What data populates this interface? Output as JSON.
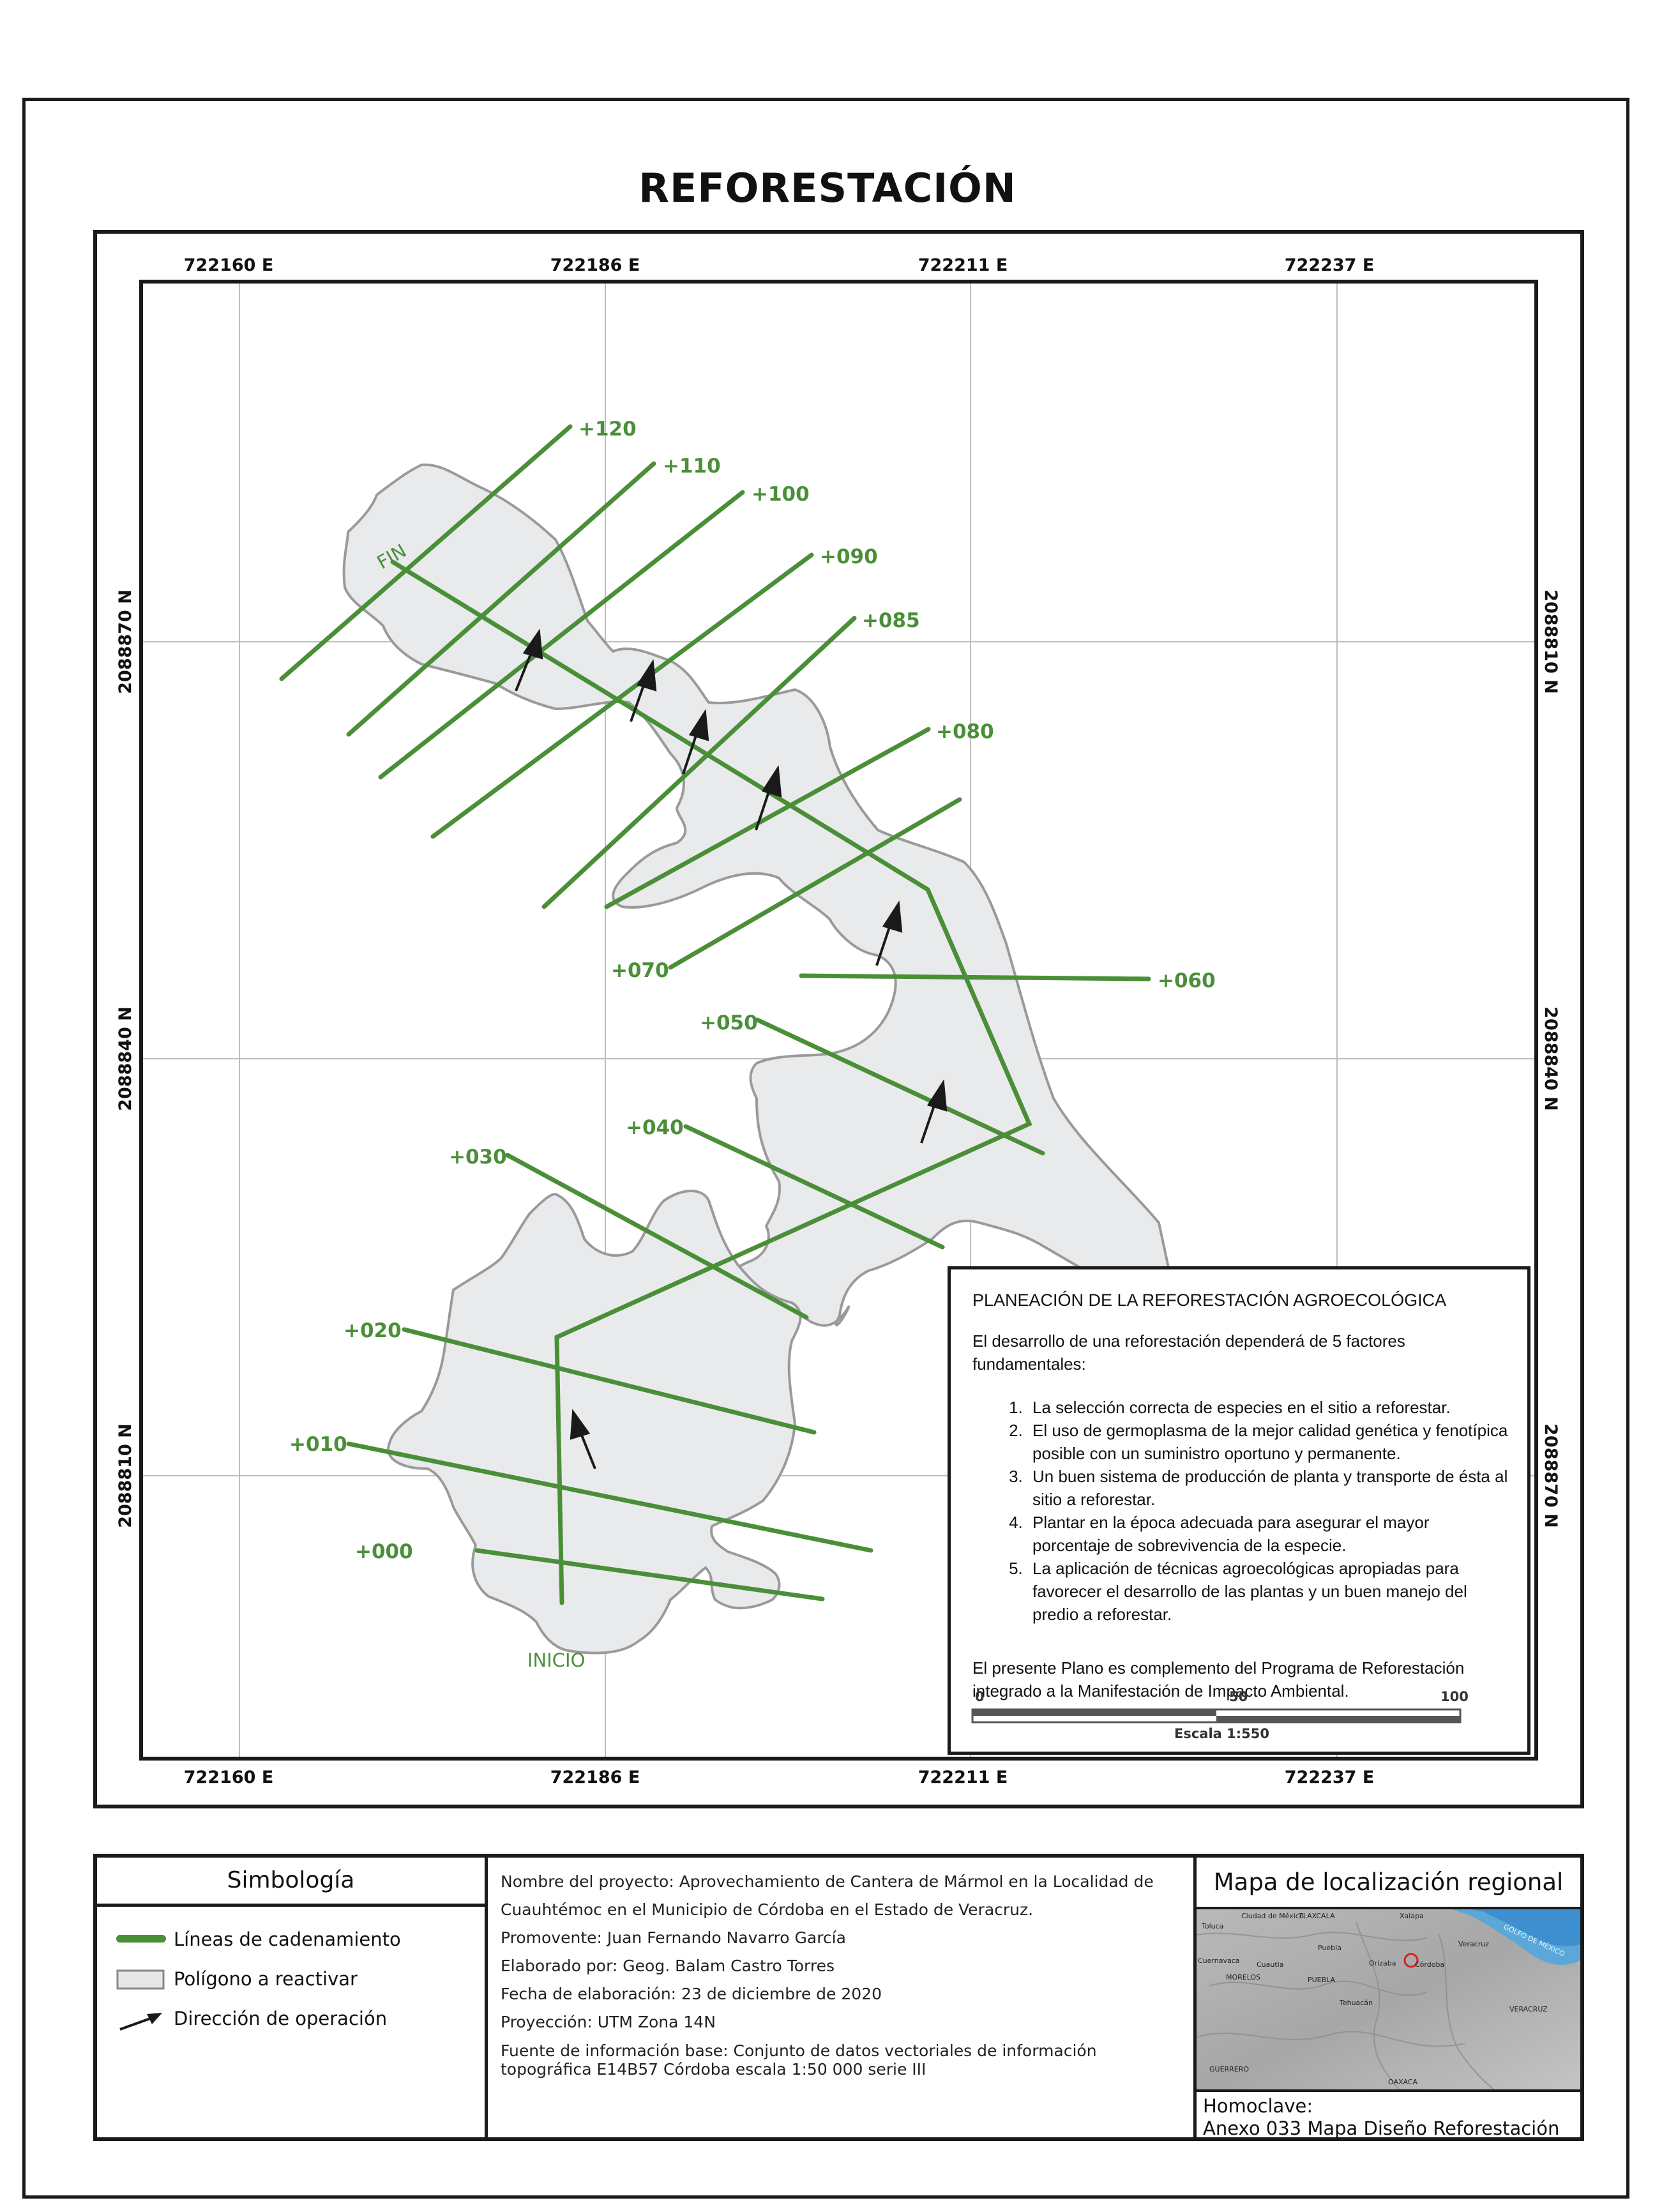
{
  "title": "REFORESTACIÓN",
  "grid": {
    "eastings": [
      "722160 E",
      "722186 E",
      "722211 E",
      "722237 E"
    ],
    "northings_left": [
      "2088870 N",
      "2088840 N",
      "2088810 N"
    ],
    "northings_right": [
      "2088810 N",
      "2088840 N",
      "2088870 N"
    ]
  },
  "chainage_labels": [
    "+120",
    "+110",
    "+100",
    "+090",
    "+085",
    "+080",
    "+070",
    "+060",
    "+050",
    "+040",
    "+030",
    "+020",
    "+010",
    "+000"
  ],
  "start_label": "INICIO",
  "end_label": "FIN",
  "notes": {
    "title": "PLANEACIÓN DE LA REFORESTACIÓN AGROECOLÓGICA",
    "intro": "El desarrollo de una reforestación dependerá de 5 factores fundamentales:",
    "items": [
      "La selección correcta de especies en el sitio a reforestar.",
      "El uso de germoplasma de la mejor calidad genética y fenotípica posible con un suministro oportuno y permanente.",
      "Un buen sistema de producción de planta y transporte de ésta al sitio a reforestar.",
      "Plantar en la época adecuada para asegurar el mayor porcentaje de sobrevivencia de la especie.",
      "La aplicación de técnicas agroecológicas apropiadas para favorecer el desarrollo de las plantas y un buen manejo del predio a reforestar."
    ],
    "footer": "El presente Plano es complemento del Programa de Reforestación integrado a la Manifestación de Impacto Ambiental."
  },
  "scale": {
    "ticks": [
      "0",
      "50",
      "100 m"
    ],
    "label": "Escala 1:550"
  },
  "legend": {
    "title": "Simbología",
    "items": [
      {
        "label": "Líneas de cadenamiento",
        "color": "#4a8f38"
      },
      {
        "label": "Polígono a reactivar",
        "color": "#e6e7e9"
      },
      {
        "label": "Dirección de operación",
        "color": "#1a1a1a"
      }
    ]
  },
  "info": {
    "project": "Nombre del proyecto: Aprovechamiento de Cantera de Mármol en la Localidad de Cuauhtémoc en el Municipio de Córdoba en el Estado de Veracruz.",
    "promovente": "Promovente: Juan Fernando Navarro García",
    "elaborado": "Elaborado por: Geog. Balam Castro Torres",
    "fecha": "Fecha de elaboración: 23 de diciembre de 2020",
    "proyeccion": "Proyección: UTM Zona 14N",
    "fuente": "Fuente de información base: Conjunto de datos vectoriales de información topográfica E14B57 Córdoba escala 1:50 000 serie III"
  },
  "locator": {
    "title": "Mapa de localización regional",
    "places": [
      "Ciudad de México",
      "Toluca",
      "TLAXCALA",
      "Xalapa",
      "GOLFO DE MÉXICO",
      "Puebla",
      "Cuernavaca",
      "Cuautla",
      "Veracruz",
      "Orizaba",
      "Córdoba",
      "MORELOS",
      "PUEBLA",
      "Tehuacán",
      "VERACRUZ",
      "GUERRERO",
      "OAXACA"
    ],
    "homoclave_label": "Homoclave:",
    "homoclave_value": "Anexo 033 Mapa Diseño Reforestación"
  }
}
